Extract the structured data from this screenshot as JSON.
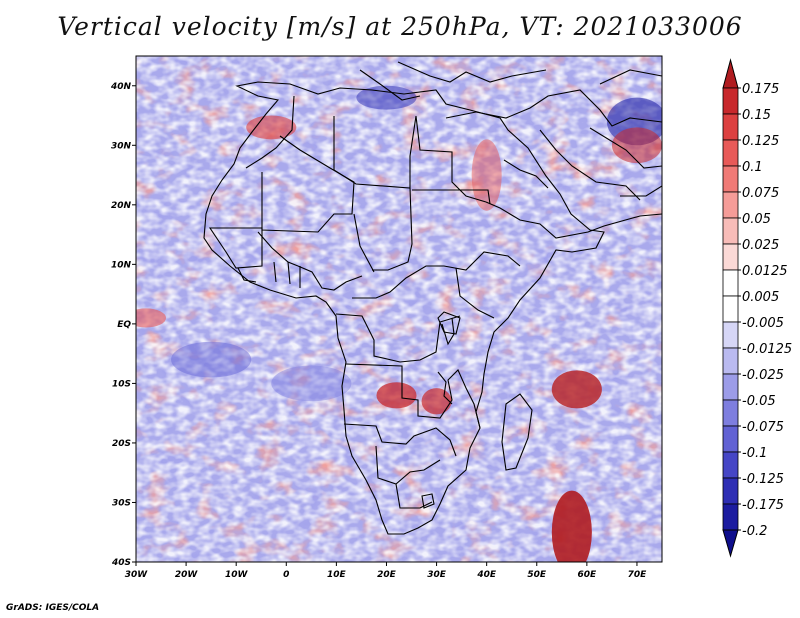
{
  "title": "Vertical velocity [m/s] at 250hPa, VT: 2021033006",
  "credit": "GrADS: IGES/COLA",
  "map": {
    "region": "Africa",
    "lon_range": [
      -30,
      75
    ],
    "lat_range": [
      -40,
      45
    ],
    "x_ticks": [
      "30W",
      "20W",
      "10W",
      "0",
      "10E",
      "20E",
      "30E",
      "40E",
      "50E",
      "60E",
      "70E"
    ],
    "y_ticks": [
      "40N",
      "30N",
      "20N",
      "10N",
      "EQ",
      "10S",
      "20S",
      "30S",
      "40S"
    ],
    "variable": "vertical velocity",
    "units": "m/s",
    "level": "250hPa"
  },
  "colorbar": {
    "levels": [
      "0.175",
      "0.15",
      "0.125",
      "0.1",
      "0.075",
      "0.05",
      "0.025",
      "0.0125",
      "0.005",
      "-0.005",
      "-0.0125",
      "-0.025",
      "-0.05",
      "-0.075",
      "-0.1",
      "-0.125",
      "-0.175",
      "-0.2"
    ],
    "colors": [
      "#b01c20",
      "#c8282c",
      "#dc4040",
      "#e85a58",
      "#f07a76",
      "#f59c98",
      "#f8bcb8",
      "#fbd9d6",
      "#ffffff",
      "#ffffff",
      "#d6d6f6",
      "#babaf0",
      "#9c9ce8",
      "#7e7edf",
      "#6262d4",
      "#4646c6",
      "#2e2eb4",
      "#1c1ca0",
      "#0e0e8c"
    ]
  }
}
